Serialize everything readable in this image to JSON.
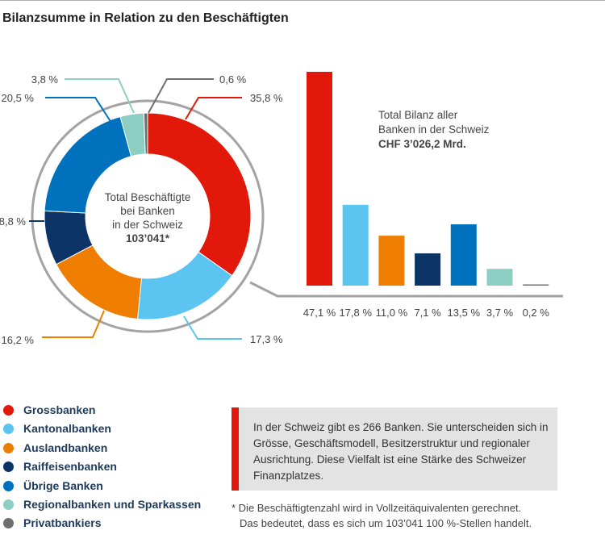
{
  "title": "Bilanzsumme in Relation zu den Beschäftigten",
  "colors": {
    "grossbanken": "#e2180b",
    "kantonalbanken": "#5bc4f1",
    "auslandbanken": "#ef7d00",
    "raiffeisenbanken": "#0d3466",
    "uebrige": "#0071bc",
    "regional": "#8ccfc2",
    "privat": "#6f6f6f"
  },
  "chart_data": [
    {
      "type": "pie",
      "variant": "donut",
      "categories": [
        "Grossbanken",
        "Kantonalbanken",
        "Auslandbanken",
        "Raiffeisenbanken",
        "Übrige Banken",
        "Regionalbanken und Sparkassen",
        "Privatbankiers"
      ],
      "values": [
        35.8,
        17.3,
        16.2,
        8.8,
        20.5,
        3.8,
        0.6
      ],
      "value_labels": [
        "35,8 %",
        "17,3 %",
        "16,2 %",
        "8,8 %",
        "20,5 %",
        "3,8 %",
        "0,6 %"
      ],
      "center_label": [
        "Total Beschäftigte",
        "bei Banken",
        "in der Schweiz",
        "103’041*"
      ]
    },
    {
      "type": "bar",
      "categories": [
        "Grossbanken",
        "Kantonalbanken",
        "Auslandbanken",
        "Raiffeisenbanken",
        "Übrige Banken",
        "Regionalbanken und Sparkassen",
        "Privatbankiers"
      ],
      "values": [
        47.1,
        17.8,
        11.0,
        7.1,
        13.5,
        3.7,
        0.2
      ],
      "value_labels": [
        "47,1 %",
        "17,8 %",
        "11,0 %",
        "7,1 %",
        "13,5 %",
        "3,7 %",
        "0,2 %"
      ],
      "ylim": [
        0,
        47.1
      ],
      "annotation": [
        "Total Bilanz aller",
        "Banken in der Schweiz",
        "CHF 3’026,2 Mrd."
      ]
    }
  ],
  "legend": [
    {
      "label": "Grossbanken",
      "color": "#e2180b"
    },
    {
      "label": "Kantonalbanken",
      "color": "#5bc4f1"
    },
    {
      "label": "Auslandbanken",
      "color": "#ef7d00"
    },
    {
      "label": "Raiffeisenbanken",
      "color": "#0d3466"
    },
    {
      "label": "Übrige Banken",
      "color": "#0071bc"
    },
    {
      "label": "Regionalbanken und Sparkassen",
      "color": "#8ccfc2"
    },
    {
      "label": "Privatbankiers",
      "color": "#6f6f6f"
    }
  ],
  "info_text": "In der Schweiz gibt es 266 Banken. Sie unterscheiden sich in Grösse, Geschäftsmodell, Besitzerstruktur und regionaler Ausrichtung. Diese Vielfalt ist eine Stärke des Schweizer Finanzplatzes.",
  "footnote": {
    "line1": "* Die Beschäftigtenzahl wird in Vollzeitäquivalenten gerechnet.",
    "line2": "Das bedeutet, dass es sich um 103’041 100 %-Stellen handelt."
  }
}
